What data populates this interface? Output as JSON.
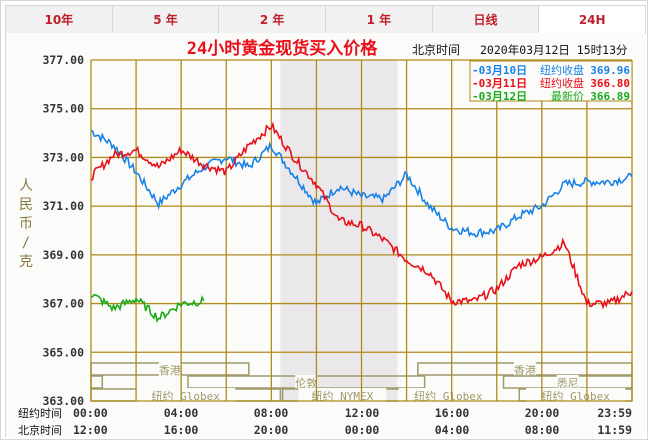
{
  "tabs": [
    {
      "label": "10年",
      "active": false
    },
    {
      "label": "5 年",
      "active": false
    },
    {
      "label": "2 年",
      "active": false
    },
    {
      "label": "1 年",
      "active": false
    },
    {
      "label": "日线",
      "active": false
    },
    {
      "label": "24H",
      "active": true
    }
  ],
  "header": {
    "title": "24小时黄金现货买入价格",
    "time_label": "北京时间",
    "timestamp": "2020年03月12日 15时13分"
  },
  "legend": [
    {
      "date": "-03月10日",
      "desc": "纽约收盘",
      "value": "369.96",
      "color": "#1a82e6"
    },
    {
      "date": "-03月11日",
      "desc": "纽约收盘",
      "value": "366.80",
      "color": "#e8101a"
    },
    {
      "date": "-03月12日",
      "desc": "最新价",
      "value": "366.89",
      "color": "#1aaa1a"
    }
  ],
  "axis": {
    "ylabel": "人民币/克",
    "yticks": [
      "377.00",
      "375.00",
      "373.00",
      "371.00",
      "369.00",
      "367.00",
      "365.00",
      "363.00"
    ],
    "row1_label": "纽约时间",
    "row2_label": "北京时间",
    "ny_times": [
      "00:00",
      "04:00",
      "08:00",
      "12:00",
      "16:00",
      "20:00",
      "23:59"
    ],
    "bj_times": [
      "12:00",
      "16:00",
      "20:00",
      "00:00",
      "04:00",
      "08:00",
      "11:59"
    ]
  },
  "sessions": [
    {
      "label": "香港",
      "row": 1
    },
    {
      "label": "伦敦",
      "row": 2
    },
    {
      "label": "纽约 Globex",
      "row": 3
    },
    {
      "label": "纽约 NYMEX",
      "row": 3
    },
    {
      "label": "纽约 Globex",
      "row": 3
    },
    {
      "label": "悉尼",
      "row": 2
    },
    {
      "label": "香港",
      "row": 1
    },
    {
      "label": "纽约 Globex",
      "row": 3
    }
  ],
  "colors": {
    "grid": "#b08a1a",
    "shade": "#ebe8ec",
    "session": "#a09a6a",
    "title": "#e8101a",
    "ylabel": "#8a7a40"
  },
  "chart_data": {
    "type": "line",
    "title": "24小时黄金现货买入价格",
    "xlabel": "纽约时间 / 北京时间",
    "ylabel": "人民币/克",
    "ylim": [
      363,
      377
    ],
    "grid": true,
    "legend_position": "top-right",
    "x_ticks_ny": [
      "00:00",
      "04:00",
      "08:00",
      "12:00",
      "16:00",
      "20:00",
      "23:59"
    ],
    "x_hours": [
      0,
      1,
      2,
      3,
      4,
      5,
      6,
      7,
      8,
      9,
      10,
      11,
      12,
      13,
      14,
      15,
      16,
      17,
      18,
      19,
      20,
      21,
      22,
      23,
      24
    ],
    "series": [
      {
        "name": "03月10日 纽约收盘 369.96",
        "color": "#1a82e6",
        "values": [
          374.1,
          373.5,
          372.4,
          371.1,
          371.9,
          372.6,
          373.0,
          372.6,
          373.5,
          372.3,
          371.1,
          371.8,
          371.4,
          371.3,
          372.3,
          371.0,
          370.1,
          369.9,
          370.0,
          370.6,
          371.0,
          371.9,
          372.0,
          372.0,
          372.2
        ]
      },
      {
        "name": "03月11日 纽约收盘 366.80",
        "color": "#e8101a",
        "values": [
          372.2,
          373.1,
          373.3,
          372.6,
          373.3,
          372.7,
          372.4,
          373.5,
          374.3,
          373.0,
          371.9,
          370.4,
          370.2,
          369.6,
          368.8,
          368.3,
          367.1,
          367.1,
          367.6,
          368.6,
          368.9,
          369.5,
          367.0,
          367.0,
          367.5
        ]
      },
      {
        "name": "03月12日 最新价 366.89",
        "color": "#1aaa1a",
        "values": [
          367.4,
          366.8,
          367.2,
          366.4,
          367.0,
          367.1,
          null,
          null,
          null,
          null,
          null,
          null,
          null,
          null,
          null,
          null,
          null,
          null,
          null,
          null,
          null,
          null,
          null,
          null,
          null
        ]
      }
    ]
  }
}
